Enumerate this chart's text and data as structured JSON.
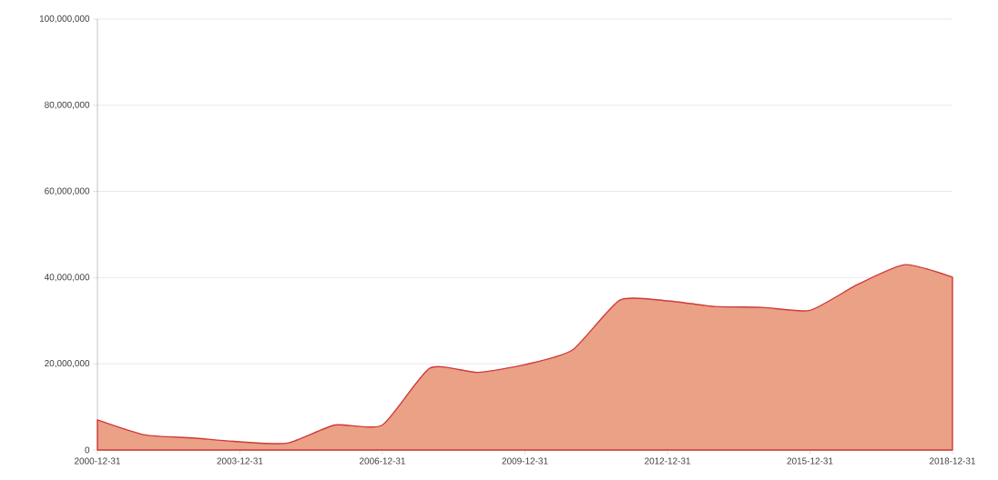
{
  "chart_data": {
    "type": "area",
    "x": [
      "2000-12-31",
      "2001-12-31",
      "2002-12-31",
      "2003-12-31",
      "2004-12-31",
      "2005-12-31",
      "2006-12-31",
      "2007-12-31",
      "2008-12-31",
      "2009-12-31",
      "2010-12-31",
      "2011-12-31",
      "2012-12-31",
      "2013-12-31",
      "2014-12-31",
      "2015-12-31",
      "2016-12-31",
      "2017-12-31",
      "2018-12-31"
    ],
    "series": [
      {
        "color": "#d0393a",
        "values": [
          7000000,
          3500000,
          2800000,
          1900000,
          1600000,
          5800000,
          5800000,
          19000000,
          18000000,
          19800000,
          23200000,
          34800000,
          34600000,
          33300000,
          33100000,
          32400000,
          38400000,
          43000000,
          40100000
        ]
      }
    ],
    "xlim": [
      "2000-12-31",
      "2018-12-31"
    ],
    "xticks": [
      "2000-12-31",
      "2003-12-31",
      "2006-12-31",
      "2009-12-31",
      "2012-12-31",
      "2015-12-31",
      "2018-12-31"
    ],
    "ylim": [
      0,
      100000000
    ],
    "yticks": [
      {
        "value": 0,
        "label": "0"
      },
      {
        "value": 20000000,
        "label": "20,000,000"
      },
      {
        "value": 40000000,
        "label": "40,000,000"
      },
      {
        "value": 60000000,
        "label": "60,000,000"
      },
      {
        "value": 80000000,
        "label": "80,000,000"
      },
      {
        "value": 100000000,
        "label": "100,000,000"
      }
    ],
    "grid": "y"
  }
}
